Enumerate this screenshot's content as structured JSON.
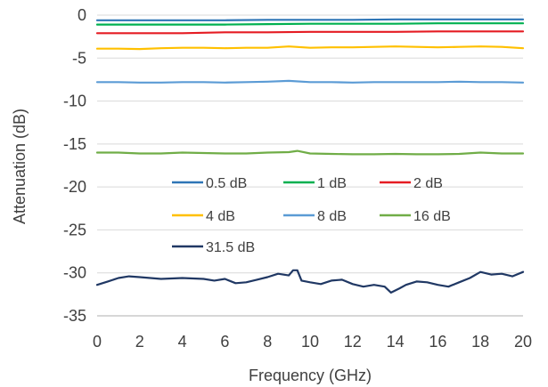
{
  "chart_data": {
    "type": "line",
    "title": "",
    "xlabel": "Frequency (GHz)",
    "ylabel": "Attenuation (dB)",
    "xlim": [
      0,
      20
    ],
    "ylim": [
      -35,
      0
    ],
    "x_ticks": [
      0,
      2,
      4,
      6,
      8,
      10,
      12,
      14,
      16,
      18,
      20
    ],
    "y_ticks": [
      0,
      -5,
      -10,
      -15,
      -20,
      -25,
      -30,
      -35
    ],
    "grid": "horizontal",
    "legend_placement": "inside-center",
    "series": [
      {
        "name": "0.5 dB",
        "color": "#2e75b6",
        "x": [
          0,
          2,
          4,
          6,
          8,
          10,
          12,
          14,
          16,
          18,
          20
        ],
        "y": [
          -0.6,
          -0.6,
          -0.6,
          -0.6,
          -0.55,
          -0.55,
          -0.55,
          -0.5,
          -0.5,
          -0.5,
          -0.5
        ]
      },
      {
        "name": "1 dB",
        "color": "#00b050",
        "x": [
          0,
          2,
          4,
          6,
          8,
          10,
          12,
          14,
          16,
          18,
          20
        ],
        "y": [
          -1.1,
          -1.1,
          -1.1,
          -1.1,
          -1.05,
          -1.0,
          -1.0,
          -1.0,
          -0.95,
          -0.95,
          -0.95
        ]
      },
      {
        "name": "2 dB",
        "color": "#e51c23",
        "x": [
          0,
          2,
          4,
          6,
          8,
          10,
          12,
          14,
          16,
          18,
          20
        ],
        "y": [
          -2.1,
          -2.1,
          -2.1,
          -2.0,
          -2.0,
          -1.95,
          -1.95,
          -1.95,
          -1.9,
          -1.9,
          -1.9
        ]
      },
      {
        "name": "4 dB",
        "color": "#ffc000",
        "x": [
          0,
          1,
          2,
          3,
          4,
          5,
          6,
          7,
          8,
          9,
          10,
          11,
          12,
          13,
          14,
          15,
          16,
          17,
          18,
          19,
          20
        ],
        "y": [
          -3.9,
          -3.9,
          -3.95,
          -3.85,
          -3.8,
          -3.8,
          -3.85,
          -3.8,
          -3.8,
          -3.65,
          -3.8,
          -3.75,
          -3.75,
          -3.7,
          -3.65,
          -3.7,
          -3.75,
          -3.7,
          -3.65,
          -3.7,
          -3.85
        ]
      },
      {
        "name": "8 dB",
        "color": "#5b9bd5",
        "x": [
          0,
          1,
          2,
          3,
          4,
          5,
          6,
          7,
          8,
          9,
          10,
          11,
          12,
          13,
          14,
          15,
          16,
          17,
          18,
          19,
          20
        ],
        "y": [
          -7.8,
          -7.8,
          -7.85,
          -7.85,
          -7.8,
          -7.8,
          -7.85,
          -7.8,
          -7.75,
          -7.65,
          -7.8,
          -7.8,
          -7.85,
          -7.8,
          -7.8,
          -7.8,
          -7.8,
          -7.75,
          -7.8,
          -7.8,
          -7.85
        ]
      },
      {
        "name": "16 dB",
        "color": "#70ad47",
        "x": [
          0,
          1,
          2,
          3,
          4,
          5,
          6,
          7,
          8,
          9,
          9.4,
          10,
          11,
          12,
          13,
          14,
          15,
          16,
          17,
          18,
          19,
          20
        ],
        "y": [
          -16.0,
          -16.0,
          -16.1,
          -16.1,
          -16.0,
          -16.05,
          -16.1,
          -16.1,
          -16.0,
          -15.95,
          -15.8,
          -16.1,
          -16.15,
          -16.2,
          -16.2,
          -16.15,
          -16.2,
          -16.2,
          -16.15,
          -16.0,
          -16.1,
          -16.1
        ]
      },
      {
        "name": "31.5 dB",
        "color": "#203864",
        "x": [
          0,
          0.5,
          1,
          1.5,
          2,
          3,
          4,
          5,
          5.5,
          6,
          6.5,
          7,
          7.5,
          8,
          8.5,
          9,
          9.2,
          9.4,
          9.6,
          10,
          10.5,
          11,
          11.5,
          12,
          12.5,
          13,
          13.5,
          13.8,
          14.2,
          14.5,
          15,
          15.5,
          16,
          16.5,
          17,
          17.5,
          18,
          18.5,
          19,
          19.5,
          20
        ],
        "y": [
          -31.4,
          -31.0,
          -30.6,
          -30.4,
          -30.5,
          -30.7,
          -30.6,
          -30.7,
          -30.9,
          -30.7,
          -31.2,
          -31.1,
          -30.8,
          -30.5,
          -30.1,
          -30.3,
          -29.7,
          -29.7,
          -30.9,
          -31.1,
          -31.3,
          -30.9,
          -30.8,
          -31.3,
          -31.6,
          -31.4,
          -31.6,
          -32.3,
          -31.8,
          -31.4,
          -31.0,
          -31.1,
          -31.4,
          -31.6,
          -31.1,
          -30.6,
          -29.9,
          -30.2,
          -30.1,
          -30.4,
          -29.9
        ]
      }
    ]
  }
}
